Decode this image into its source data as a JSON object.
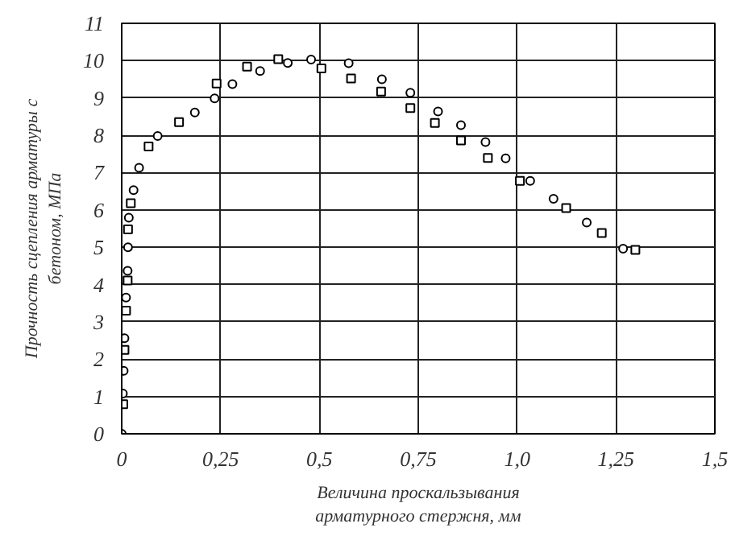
{
  "chart_data": {
    "type": "scatter",
    "xlabel": "Величина проскальзывания\nарматурного стержня, мм",
    "ylabel": "Прочность сцепления арматуры с\nбетоном, МПа",
    "series": [
      {
        "color": "#000000",
        "marker": "circle",
        "x": [
          0,
          0.003,
          0.005,
          0.007,
          0.011,
          0.015,
          0.016,
          0.018,
          0.03,
          0.044,
          0.091,
          0.185,
          0.235,
          0.28,
          0.35,
          0.42,
          0.479,
          0.574,
          0.658,
          0.73,
          0.8,
          0.858,
          0.92,
          0.971,
          1.033,
          1.092,
          1.176,
          1.268
        ],
        "values": [
          0,
          1.08,
          1.69,
          2.56,
          3.65,
          4.37,
          5.0,
          5.79,
          6.53,
          7.13,
          7.98,
          8.61,
          8.99,
          9.37,
          9.72,
          9.94,
          10.03,
          9.93,
          9.5,
          9.14,
          8.64,
          8.27,
          7.82,
          7.38,
          6.78,
          6.3,
          5.66,
          4.96
        ]
      },
      {
        "color": "#000000",
        "marker": "square",
        "x": [
          0.004,
          0.007,
          0.011,
          0.015,
          0.016,
          0.023,
          0.068,
          0.145,
          0.24,
          0.317,
          0.396,
          0.505,
          0.58,
          0.656,
          0.73,
          0.792,
          0.858,
          0.926,
          1.007,
          1.124,
          1.214,
          1.299
        ],
        "values": [
          0.79,
          2.25,
          3.3,
          4.11,
          5.48,
          6.18,
          7.7,
          8.35,
          9.39,
          9.84,
          10.04,
          9.79,
          9.52,
          9.17,
          8.73,
          8.33,
          7.86,
          7.39,
          6.78,
          6.05,
          5.38,
          4.93
        ]
      }
    ],
    "xlim": [
      0,
      1.5
    ],
    "ylim": [
      0,
      11
    ],
    "xticks": [
      0,
      {
        "value": 0.25,
        "label": "0,25"
      },
      {
        "value": 0.5,
        "label": "0,5"
      },
      {
        "value": 0.75,
        "label": "0,75"
      },
      {
        "value": 1.0,
        "label": "1,0"
      },
      {
        "value": 1.25,
        "label": "1,25"
      },
      {
        "value": 1.5,
        "label": "1,5"
      }
    ],
    "yticks": [
      0,
      1,
      2,
      3,
      4,
      5,
      6,
      7,
      8,
      9,
      10,
      11
    ],
    "grid": true
  }
}
